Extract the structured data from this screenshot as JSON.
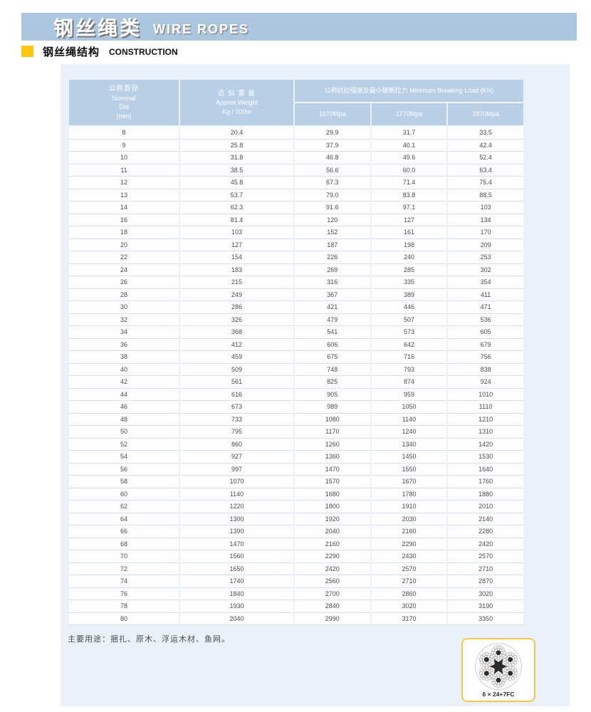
{
  "banner": {
    "title_zh": "钢丝绳类",
    "title_en": "WIRE ROPES"
  },
  "section": {
    "title_zh": "钢丝绳结构",
    "title_en": "CONSTRUCTION"
  },
  "colors": {
    "banner_blue": "#adc6e0",
    "panel_blue": "#eaf1f9",
    "header_cell_blue": "#b9cfe6",
    "bullet_yellow": "#ffc60a",
    "rope_box_border": "#f2c84b"
  },
  "table": {
    "col1_header": {
      "zh": "公称直径",
      "en1": "Nominal",
      "en2": "Dia",
      "en3": "(mm)"
    },
    "col2_header": {
      "zh": "近 似 重 量",
      "en1": "Approx Weight",
      "en2": "Kg / 100m"
    },
    "group_header": "公称抗拉强度及最小破断拉力 Minimum Breaking Load (KN)",
    "sub_headers": [
      "1670Mpa",
      "1770Mpa",
      "1870Mpa"
    ],
    "rows": [
      [
        "8",
        "20.4",
        "29.9",
        "31.7",
        "33.5"
      ],
      [
        "9",
        "25.8",
        "37.9",
        "40.1",
        "42.4"
      ],
      [
        "10",
        "31.8",
        "46.8",
        "49.6",
        "52.4"
      ],
      [
        "11",
        "38.5",
        "56.6",
        "60.0",
        "63.4"
      ],
      [
        "12",
        "45.8",
        "67.3",
        "71.4",
        "75.4"
      ],
      [
        "13",
        "53.7",
        "79.0",
        "83.8",
        "88.5"
      ],
      [
        "14",
        "62.3",
        "91.6",
        "97.1",
        "103"
      ],
      [
        "16",
        "81.4",
        "120",
        "127",
        "134"
      ],
      [
        "18",
        "103",
        "152",
        "161",
        "170"
      ],
      [
        "20",
        "127",
        "187",
        "198",
        "209"
      ],
      [
        "22",
        "154",
        "226",
        "240",
        "253"
      ],
      [
        "24",
        "183",
        "269",
        "285",
        "302"
      ],
      [
        "26",
        "215",
        "316",
        "335",
        "354"
      ],
      [
        "28",
        "249",
        "367",
        "389",
        "411"
      ],
      [
        "30",
        "286",
        "421",
        "446",
        "471"
      ],
      [
        "32",
        "326",
        "479",
        "507",
        "536"
      ],
      [
        "34",
        "368",
        "541",
        "573",
        "605"
      ],
      [
        "36",
        "412",
        "606",
        "642",
        "679"
      ],
      [
        "38",
        "459",
        "675",
        "716",
        "756"
      ],
      [
        "40",
        "509",
        "748",
        "793",
        "838"
      ],
      [
        "42",
        "561",
        "825",
        "874",
        "924"
      ],
      [
        "44",
        "616",
        "905",
        "959",
        "1010"
      ],
      [
        "46",
        "673",
        "989",
        "1050",
        "1110"
      ],
      [
        "48",
        "733",
        "1080",
        "1140",
        "1210"
      ],
      [
        "50",
        "795",
        "1170",
        "1240",
        "1310"
      ],
      [
        "52",
        "860",
        "1260",
        "1340",
        "1420"
      ],
      [
        "54",
        "927",
        "1360",
        "1450",
        "1530"
      ],
      [
        "56",
        "997",
        "1470",
        "1550",
        "1640"
      ],
      [
        "58",
        "1070",
        "1570",
        "1670",
        "1760"
      ],
      [
        "60",
        "1140",
        "1680",
        "1780",
        "1880"
      ],
      [
        "62",
        "1220",
        "1800",
        "1910",
        "2010"
      ],
      [
        "64",
        "1300",
        "1920",
        "2030",
        "2140"
      ],
      [
        "66",
        "1390",
        "2040",
        "2160",
        "2280"
      ],
      [
        "68",
        "1470",
        "2160",
        "2290",
        "2420"
      ],
      [
        "70",
        "1560",
        "2290",
        "2430",
        "2570"
      ],
      [
        "72",
        "1650",
        "2420",
        "2570",
        "2710"
      ],
      [
        "74",
        "1740",
        "2560",
        "2710",
        "2870"
      ],
      [
        "76",
        "1840",
        "2700",
        "2860",
        "3020"
      ],
      [
        "78",
        "1930",
        "2840",
        "3020",
        "3190"
      ],
      [
        "80",
        "2040",
        "2990",
        "3170",
        "3350"
      ]
    ]
  },
  "footer": {
    "usage_note": "主要用途：捆扎、原木、浮运木材、鱼网。"
  },
  "rope_icon": {
    "label": "6 × 24+7FC",
    "meaning": "wire-rope-cross-section 6x24 with 7 fiber cores"
  }
}
